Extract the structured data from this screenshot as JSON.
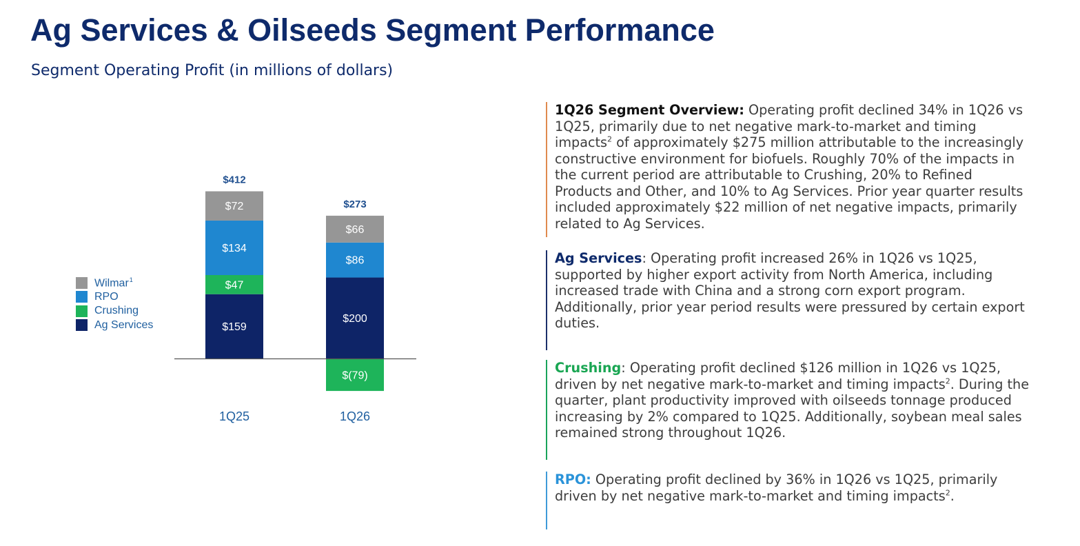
{
  "page": {
    "title": "Ag Services & Oilseeds Segment Performance",
    "subtitle": "Segment Operating Profit (in millions of dollars)"
  },
  "colors": {
    "title": "#0e2a6b",
    "wilmar": "#969696",
    "rpo": "#1f87d0",
    "crushing": "#1eb45a",
    "ag_services": "#0e2467",
    "axis": "#555555",
    "total_label": "#1f4f8f",
    "category_label": "#1f5f9f"
  },
  "chart_data": {
    "type": "bar",
    "stacked": true,
    "categories": [
      "1Q25",
      "1Q26"
    ],
    "series": [
      {
        "name": "Ag Services",
        "values": [
          159,
          200
        ],
        "labels": [
          "$159",
          "$200"
        ],
        "color": "#0e2467"
      },
      {
        "name": "Crushing",
        "values": [
          47,
          -79
        ],
        "labels": [
          "$47",
          "$(79)"
        ],
        "color": "#1eb45a"
      },
      {
        "name": "RPO",
        "values": [
          134,
          86
        ],
        "labels": [
          "$134",
          "$86"
        ],
        "color": "#1f87d0"
      },
      {
        "name": "Wilmar",
        "values": [
          72,
          66
        ],
        "labels": [
          "$72",
          "$66"
        ],
        "color": "#969696"
      }
    ],
    "totals": [
      "$412",
      "$273"
    ],
    "legend": [
      {
        "label": "Wilmar",
        "sup": "1",
        "color": "#969696"
      },
      {
        "label": "RPO",
        "sup": "",
        "color": "#1f87d0"
      },
      {
        "label": "Crushing",
        "sup": "",
        "color": "#1eb45a"
      },
      {
        "label": "Ag Services",
        "sup": "",
        "color": "#0e2467"
      }
    ],
    "legend_position": "left",
    "grid": false
  },
  "sections": {
    "overview": {
      "head": "1Q26 Segment Overview:",
      "body": " Operating profit declined 34% in 1Q26 vs 1Q25, primarily due to net negative mark-to-market and timing impacts",
      "sup": "2",
      "body2": " of approximately $275 million attributable to the increasingly constructive environment for biofuels. Roughly 70% of the impacts in the current period are attributable to Crushing, 20% to Refined Products and Other, and 10% to Ag Services. Prior year quarter results included approximately $22 million of net negative impacts, primarily related to Ag Services."
    },
    "ag_services": {
      "head": "Ag Services",
      "body": ": Operating profit increased 26% in 1Q26 vs 1Q25, supported by higher export activity from North America, including increased trade with China and a strong corn export program. Additionally, prior year period results were pressured by certain export duties."
    },
    "crushing": {
      "head": "Crushing",
      "body": ": Operating profit declined $126 million in 1Q26 vs 1Q25, driven by net negative mark-to-market and timing impacts",
      "sup": "2",
      "body2": ". During the quarter, plant productivity improved with oilseeds tonnage produced increasing by 2% compared to 1Q25. Additionally, soybean meal sales remained strong throughout 1Q26."
    },
    "rpo": {
      "head": "RPO:",
      "body": " Operating profit declined by 36% in 1Q26 vs 1Q25, primarily driven by net negative mark-to-market and timing impacts",
      "sup": "2",
      "body2": "."
    }
  }
}
